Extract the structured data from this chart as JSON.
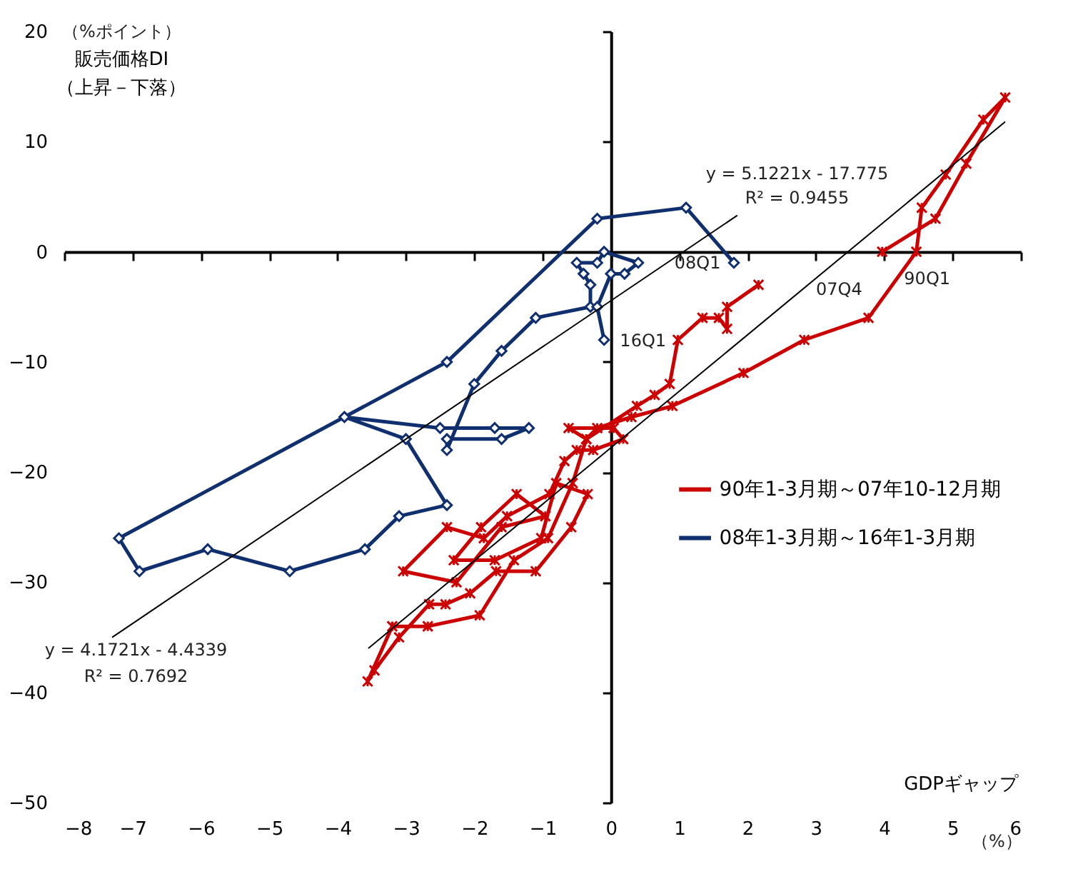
{
  "chart_data": {
    "type": "line",
    "xlabel": "GDPギャップ",
    "ylabel": "販売価格DI（上昇－下落）",
    "line_style": "solid",
    "xlim": [
      -8,
      6
    ],
    "xticks": [
      -8,
      -7,
      -6,
      -5,
      -4,
      -3,
      -2,
      -1,
      0,
      1,
      2,
      3,
      4,
      5,
      6
    ],
    "ylim": [
      -50,
      20
    ],
    "yticks": [
      -50,
      -40,
      -30,
      -20,
      -10,
      0,
      10,
      20
    ],
    "legend": "right",
    "series": [
      {
        "name": "90年1-3月期～07年10-12月期",
        "color": "#cc0000",
        "marker": "cross",
        "x": [
          3.97,
          4.75,
          5.2,
          5.77,
          5.45,
          4.9,
          4.55,
          4.47,
          3.77,
          2.83,
          1.94,
          0.9,
          0.3,
          -0.2,
          -0.36,
          -0.56,
          -0.92,
          -1.42,
          -1.92,
          -2.68,
          -3.2,
          -3.56,
          -3.46,
          -3.1,
          -2.66,
          -2.42,
          -2.06,
          -1.68,
          -1.1,
          -0.58,
          -0.34,
          -0.8,
          -1.02,
          -1.7,
          -2.3,
          -1.9,
          -1.38,
          -0.96,
          -1.6,
          -2.26,
          -3.04,
          -2.4,
          -1.86,
          -1.52,
          -0.9,
          -0.68,
          -0.5,
          -0.26,
          0.18,
          0.04,
          -0.62,
          -0.36,
          0.38,
          0.64,
          0.86,
          0.98,
          1.34,
          1.58,
          1.7,
          1.7,
          2.16
        ],
        "values": [
          0,
          3,
          8,
          14,
          12,
          7,
          4,
          0,
          -6,
          -8,
          -11,
          -14,
          -15,
          -16,
          -17,
          -21,
          -26,
          -28,
          -33,
          -34,
          -34,
          -39,
          -38,
          -35,
          -32,
          -32,
          -31,
          -29,
          -29,
          -25,
          -22,
          -21,
          -26,
          -28,
          -28,
          -25,
          -22,
          -24,
          -25,
          -30,
          -29,
          -25,
          -26,
          -24,
          -22,
          -19,
          -18,
          -18,
          -17,
          -16,
          -16,
          -17,
          -14,
          -13,
          -12,
          -8,
          -6,
          -6,
          -7,
          -5,
          -3
        ]
      },
      {
        "name": "08年1-3月期～16年1-3月期",
        "color": "#0f2f6e",
        "marker": "diamond",
        "x": [
          1.8,
          1.1,
          -0.2,
          -2.4,
          -3.9,
          -7.2,
          -6.9,
          -5.9,
          -4.7,
          -3.6,
          -3.1,
          -2.4,
          -3.0,
          -3.9,
          -2.5,
          -1.7,
          -1.2,
          -1.6,
          -2.4,
          -2.4,
          -2.0,
          -1.6,
          -1.1,
          -0.3,
          -0.3,
          -0.4,
          -0.5,
          -0.2,
          -0.1,
          0.4,
          0.2,
          0.0,
          -0.2,
          -0.1
        ],
        "values": [
          -1,
          4,
          3,
          -10,
          -15,
          -26,
          -29,
          -27,
          -29,
          -27,
          -24,
          -23,
          -17,
          -15,
          -16,
          -16,
          -16,
          -17,
          -17,
          -18,
          -12,
          -9,
          -6,
          -5,
          -3,
          -2,
          -1,
          -1,
          0,
          -1,
          -2,
          -2,
          -5,
          -8
        ]
      },
      {
        "color": "#000000",
        "marker": "none",
        "x": [
          -3.55,
          5.77
        ],
        "values": [
          -36,
          11.8
        ]
      },
      {
        "color": "#000000",
        "marker": "none",
        "x": [
          -7.3,
          1.85
        ],
        "values": [
          -35,
          3.3
        ]
      }
    ],
    "annotations": [
      "y = 5.1221x - 17.775",
      "R² = 0.9455",
      "y = 4.1721x - 4.4339",
      "R² = 0.7692",
      "08Q1",
      "07Q4",
      "90Q1",
      "16Q1",
      "（%ポイント）",
      "（%）"
    ]
  }
}
